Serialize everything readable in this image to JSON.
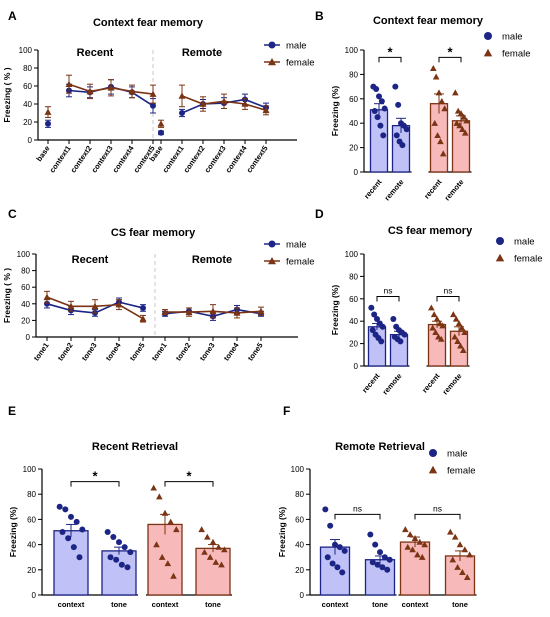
{
  "colors": {
    "male": "#1c2585",
    "female": "#7b3414",
    "male_fill": "#bfc1f7",
    "female_fill": "#f7b9b9"
  },
  "panel_labels": [
    "A",
    "B",
    "C",
    "D",
    "E",
    "F"
  ],
  "chart_data": [
    {
      "panel": "A",
      "type": "line",
      "title": "Context fear memory",
      "ylabel": "Freezing ( % )",
      "ylim": [
        0,
        100
      ],
      "yticks": [
        0,
        20,
        40,
        60,
        80,
        100
      ],
      "subtitles": [
        "Recent",
        "Remote"
      ],
      "categories": [
        "base",
        "context1",
        "context2",
        "context3",
        "context4",
        "context5",
        "base",
        "context1",
        "context2",
        "context3",
        "context4",
        "context5"
      ],
      "legend": [
        "male",
        "female"
      ],
      "series": [
        {
          "name": "male",
          "values": [
            18,
            55,
            53,
            59,
            53,
            38,
            8,
            30,
            40,
            41,
            45,
            36
          ],
          "errors": [
            4,
            7,
            6,
            8,
            6,
            8,
            2,
            4,
            5,
            6,
            6,
            5
          ]
        },
        {
          "name": "female",
          "values": [
            31,
            62,
            54,
            58,
            54,
            51,
            18,
            49,
            40,
            43,
            40,
            33
          ],
          "errors": [
            6,
            10,
            8,
            9,
            7,
            10,
            4,
            12,
            8,
            8,
            6,
            5
          ]
        }
      ]
    },
    {
      "panel": "B",
      "type": "bar",
      "title": "Context fear memory",
      "ylabel": "Freezing (%)",
      "ylim": [
        0,
        100
      ],
      "yticks": [
        0,
        20,
        40,
        60,
        80,
        100
      ],
      "categories": [
        "recent",
        "remote",
        "recent",
        "remote"
      ],
      "groups": [
        "male",
        "male",
        "female",
        "female"
      ],
      "values": [
        51,
        38,
        56,
        42
      ],
      "errors": [
        5,
        6,
        8,
        4
      ],
      "points": [
        [
          70,
          68,
          62,
          58,
          52,
          50,
          45,
          38,
          30
        ],
        [
          70,
          55,
          40,
          38,
          35,
          30,
          25,
          22
        ],
        [
          85,
          78,
          65,
          58,
          52,
          40,
          30,
          25,
          15
        ],
        [
          65,
          50,
          48,
          45,
          42,
          40,
          38,
          35,
          32
        ]
      ],
      "annotations": [
        "*",
        "*"
      ],
      "legend": [
        "male",
        "female"
      ]
    },
    {
      "panel": "C",
      "type": "line",
      "title": "CS fear memory",
      "ylabel": "Freezing ( % )",
      "ylim": [
        0,
        100
      ],
      "yticks": [
        0,
        20,
        40,
        60,
        80,
        100
      ],
      "subtitles": [
        "Recent",
        "Remote"
      ],
      "categories": [
        "tone1",
        "tone2",
        "tone3",
        "tone4",
        "tone5",
        "tone1",
        "tone2",
        "tone3",
        "tone4",
        "tone5"
      ],
      "legend": [
        "male",
        "female"
      ],
      "series": [
        {
          "name": "male",
          "values": [
            40,
            32,
            29,
            42,
            35,
            28,
            31,
            25,
            33,
            28
          ],
          "errors": [
            5,
            5,
            4,
            5,
            4,
            3,
            4,
            5,
            5,
            3
          ]
        },
        {
          "name": "female",
          "values": [
            48,
            37,
            37,
            39,
            22,
            30,
            30,
            31,
            29,
            31
          ],
          "errors": [
            7,
            6,
            8,
            6,
            4,
            3,
            5,
            8,
            6,
            5
          ]
        }
      ]
    },
    {
      "panel": "D",
      "type": "bar",
      "title": "CS fear memory",
      "ylabel": "Freezing (%)",
      "ylim": [
        0,
        100
      ],
      "yticks": [
        0,
        20,
        40,
        60,
        80,
        100
      ],
      "categories": [
        "recent",
        "remote",
        "recent",
        "remote"
      ],
      "groups": [
        "male",
        "male",
        "female",
        "female"
      ],
      "values": [
        35,
        28,
        37,
        31
      ],
      "errors": [
        3,
        3,
        3,
        4
      ],
      "points": [
        [
          52,
          46,
          42,
          38,
          35,
          32,
          28,
          25,
          22
        ],
        [
          42,
          35,
          32,
          30,
          28,
          26,
          24,
          22
        ],
        [
          52,
          46,
          42,
          38,
          36,
          34,
          30,
          26,
          24
        ],
        [
          46,
          42,
          38,
          34,
          30,
          26,
          22,
          18,
          14
        ]
      ],
      "annotations": [
        "ns",
        "ns"
      ],
      "legend": [
        "male",
        "female"
      ]
    },
    {
      "panel": "E",
      "type": "bar",
      "title": "Recent Retrieval",
      "ylabel": "Freezing (%)",
      "ylim": [
        0,
        100
      ],
      "yticks": [
        0,
        20,
        40,
        60,
        80,
        100
      ],
      "categories": [
        "context",
        "tone",
        "context",
        "tone"
      ],
      "groups": [
        "male",
        "male",
        "female",
        "female"
      ],
      "values": [
        51,
        35,
        56,
        37
      ],
      "errors": [
        5,
        3,
        8,
        3
      ],
      "points": [
        [
          70,
          68,
          62,
          58,
          52,
          50,
          45,
          38,
          30
        ],
        [
          50,
          46,
          42,
          38,
          34,
          30,
          28,
          24,
          22
        ],
        [
          85,
          78,
          65,
          58,
          52,
          40,
          30,
          25,
          15
        ],
        [
          52,
          46,
          42,
          38,
          36,
          34,
          30,
          26,
          24
        ]
      ],
      "annotations": [
        "*",
        "*"
      ],
      "legend": []
    },
    {
      "panel": "F",
      "type": "bar",
      "title": "Remote Retrieval",
      "ylabel": "Freezing (%)",
      "ylim": [
        0,
        100
      ],
      "yticks": [
        0,
        20,
        40,
        60,
        80,
        100
      ],
      "categories": [
        "context",
        "tone",
        "context",
        "tone"
      ],
      "groups": [
        "male",
        "male",
        "female",
        "female"
      ],
      "values": [
        38,
        28,
        42,
        31
      ],
      "errors": [
        6,
        3,
        4,
        4
      ],
      "points": [
        [
          68,
          55,
          40,
          38,
          35,
          30,
          25,
          22,
          18
        ],
        [
          48,
          40,
          34,
          30,
          28,
          26,
          24,
          22,
          20
        ],
        [
          52,
          48,
          45,
          42,
          40,
          38,
          36,
          32,
          30
        ],
        [
          50,
          46,
          40,
          36,
          32,
          28,
          22,
          18,
          14
        ]
      ],
      "annotations": [
        "ns",
        "ns"
      ],
      "legend": [
        "male",
        "female"
      ]
    }
  ]
}
